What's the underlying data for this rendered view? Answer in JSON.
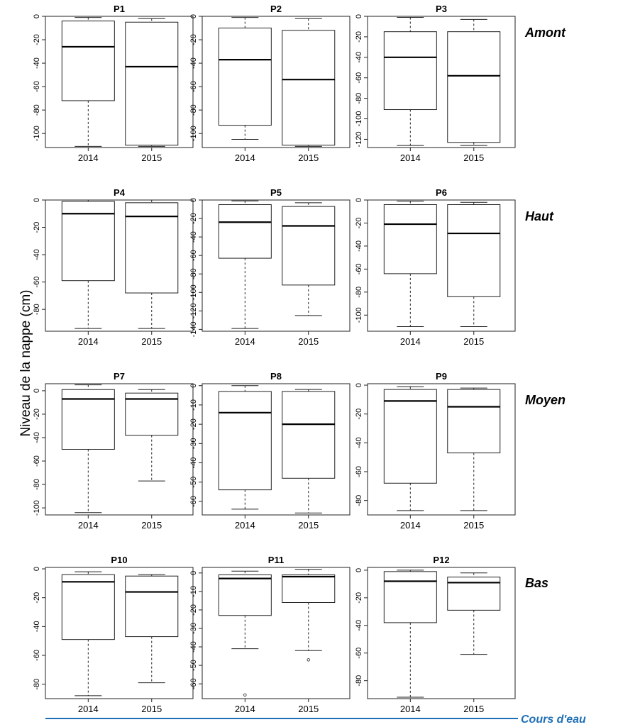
{
  "figure": {
    "ylabel": "Niveau de la nappe (cm)",
    "river_label": "Cours d'eau",
    "row_labels": [
      "Amont",
      "Haut",
      "Moyen",
      "Bas"
    ],
    "colors": {
      "river": "#1f6fb6",
      "box_stroke": "#222222"
    }
  },
  "chart_data": [
    {
      "type": "box",
      "title": "P1",
      "categories": [
        "2014",
        "2015"
      ],
      "ylim": [
        -112,
        0
      ],
      "yticks": [
        0,
        -20,
        -40,
        -60,
        -80,
        -100
      ],
      "series": [
        {
          "category": "2014",
          "whisker_high": -1,
          "q3": -4,
          "median": -26,
          "q1": -72,
          "whisker_low": -111,
          "outliers": []
        },
        {
          "category": "2015",
          "whisker_high": -2,
          "q3": -5,
          "median": -43,
          "q1": -110,
          "whisker_low": -111,
          "outliers": []
        }
      ]
    },
    {
      "type": "box",
      "title": "P2",
      "categories": [
        "2014",
        "2015"
      ],
      "ylim": [
        -112,
        0
      ],
      "yticks": [
        0,
        -20,
        -40,
        -60,
        -80,
        -100
      ],
      "series": [
        {
          "category": "2014",
          "whisker_high": -1,
          "q3": -10,
          "median": -37,
          "q1": -93,
          "whisker_low": -105,
          "outliers": []
        },
        {
          "category": "2015",
          "whisker_high": -2,
          "q3": -12,
          "median": -54,
          "q1": -110,
          "whisker_low": -111,
          "outliers": []
        }
      ]
    },
    {
      "type": "box",
      "title": "P3",
      "categories": [
        "2014",
        "2015"
      ],
      "ylim": [
        -128,
        0
      ],
      "yticks": [
        0,
        -20,
        -40,
        -60,
        -80,
        -100,
        -120
      ],
      "series": [
        {
          "category": "2014",
          "whisker_high": -1,
          "q3": -15,
          "median": -40,
          "q1": -91,
          "whisker_low": -126,
          "outliers": []
        },
        {
          "category": "2015",
          "whisker_high": -3,
          "q3": -15,
          "median": -58,
          "q1": -123,
          "whisker_low": -126,
          "outliers": []
        }
      ]
    },
    {
      "type": "box",
      "title": "P4",
      "categories": [
        "2014",
        "2015"
      ],
      "ylim": [
        -96,
        0
      ],
      "yticks": [
        0,
        -20,
        -40,
        -60,
        -80
      ],
      "series": [
        {
          "category": "2014",
          "whisker_high": 0,
          "q3": -1,
          "median": -10,
          "q1": -59,
          "whisker_low": -94,
          "outliers": []
        },
        {
          "category": "2015",
          "whisker_high": 0,
          "q3": -2,
          "median": -12,
          "q1": -68,
          "whisker_low": -94,
          "outliers": []
        }
      ]
    },
    {
      "type": "box",
      "title": "P5",
      "categories": [
        "2014",
        "2015"
      ],
      "ylim": [
        -142,
        0
      ],
      "yticks": [
        0,
        -20,
        -40,
        -60,
        -80,
        -100,
        -120,
        -140
      ],
      "series": [
        {
          "category": "2014",
          "whisker_high": -1,
          "q3": -5,
          "median": -24,
          "q1": -63,
          "whisker_low": -139,
          "outliers": []
        },
        {
          "category": "2015",
          "whisker_high": -3,
          "q3": -7,
          "median": -28,
          "q1": -92,
          "whisker_low": -125,
          "outliers": []
        }
      ]
    },
    {
      "type": "box",
      "title": "P6",
      "categories": [
        "2014",
        "2015"
      ],
      "ylim": [
        -114,
        0
      ],
      "yticks": [
        0,
        -20,
        -40,
        -60,
        -80,
        -100
      ],
      "series": [
        {
          "category": "2014",
          "whisker_high": -1,
          "q3": -4,
          "median": -21,
          "q1": -64,
          "whisker_low": -110,
          "outliers": []
        },
        {
          "category": "2015",
          "whisker_high": -2,
          "q3": -4,
          "median": -29,
          "q1": -84,
          "whisker_low": -110,
          "outliers": []
        }
      ]
    },
    {
      "type": "box",
      "title": "P7",
      "categories": [
        "2014",
        "2015"
      ],
      "ylim": [
        -106,
        6
      ],
      "yticks": [
        0,
        -20,
        -40,
        -60,
        -80,
        -100
      ],
      "series": [
        {
          "category": "2014",
          "whisker_high": 5,
          "q3": 1,
          "median": -7,
          "q1": -50,
          "whisker_low": -104,
          "outliers": []
        },
        {
          "category": "2015",
          "whisker_high": 1,
          "q3": -2,
          "median": -7,
          "q1": -38,
          "whisker_low": -77,
          "outliers": []
        }
      ]
    },
    {
      "type": "box",
      "title": "P8",
      "categories": [
        "2014",
        "2015"
      ],
      "ylim": [
        -67,
        1
      ],
      "yticks": [
        0,
        -10,
        -20,
        -30,
        -40,
        -50,
        -60
      ],
      "series": [
        {
          "category": "2014",
          "whisker_high": 0,
          "q3": -3,
          "median": -14,
          "q1": -54,
          "whisker_low": -64,
          "outliers": []
        },
        {
          "category": "2015",
          "whisker_high": -2,
          "q3": -3,
          "median": -20,
          "q1": -48,
          "whisker_low": -66,
          "outliers": []
        }
      ]
    },
    {
      "type": "box",
      "title": "P9",
      "categories": [
        "2014",
        "2015"
      ],
      "ylim": [
        -90,
        1
      ],
      "yticks": [
        0,
        -20,
        -40,
        -60,
        -80
      ],
      "series": [
        {
          "category": "2014",
          "whisker_high": -1,
          "q3": -3,
          "median": -11,
          "q1": -68,
          "whisker_low": -87,
          "outliers": []
        },
        {
          "category": "2015",
          "whisker_high": -2,
          "q3": -3,
          "median": -15,
          "q1": -47,
          "whisker_low": -87,
          "outliers": []
        }
      ]
    },
    {
      "type": "box",
      "title": "P10",
      "categories": [
        "2014",
        "2015"
      ],
      "ylim": [
        -90,
        1
      ],
      "yticks": [
        0,
        -20,
        -40,
        -60,
        -80
      ],
      "series": [
        {
          "category": "2014",
          "whisker_high": -2,
          "q3": -4,
          "median": -9,
          "q1": -49,
          "whisker_low": -88,
          "outliers": []
        },
        {
          "category": "2015",
          "whisker_high": -4,
          "q3": -5,
          "median": -16,
          "q1": -47,
          "whisker_low": -79,
          "outliers": []
        }
      ]
    },
    {
      "type": "box",
      "title": "P11",
      "categories": [
        "2014",
        "2015"
      ],
      "ylim": [
        -68,
        3
      ],
      "yticks": [
        0,
        -10,
        -20,
        -30,
        -40,
        -50,
        -60
      ],
      "series": [
        {
          "category": "2014",
          "whisker_high": 1,
          "q3": -1,
          "median": -3,
          "q1": -23,
          "whisker_low": -41,
          "outliers": [
            -66
          ]
        },
        {
          "category": "2015",
          "whisker_high": 2,
          "q3": -1,
          "median": -2,
          "q1": -16,
          "whisker_low": -42,
          "outliers": [
            -47
          ]
        }
      ]
    },
    {
      "type": "box",
      "title": "P12",
      "categories": [
        "2014",
        "2015"
      ],
      "ylim": [
        -93,
        2
      ],
      "yticks": [
        0,
        -20,
        -40,
        -60,
        -80
      ],
      "series": [
        {
          "category": "2014",
          "whisker_high": 0,
          "q3": -1,
          "median": -8,
          "q1": -38,
          "whisker_low": -92,
          "outliers": []
        },
        {
          "category": "2015",
          "whisker_high": -2,
          "q3": -5,
          "median": -9,
          "q1": -29,
          "whisker_low": -61,
          "outliers": []
        }
      ]
    }
  ]
}
